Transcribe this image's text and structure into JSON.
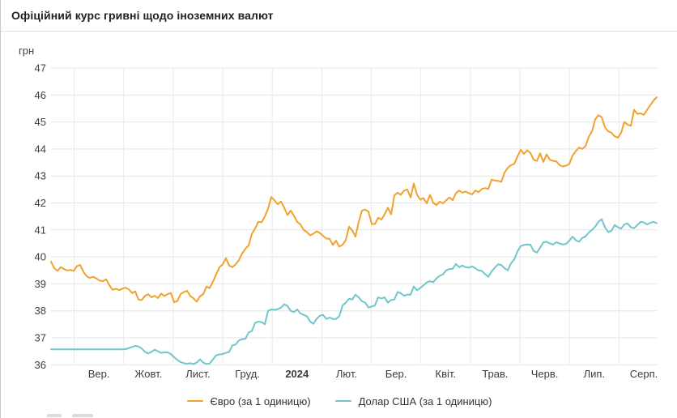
{
  "header": {
    "title": "Офіційний курс гривні щодо іноземних валют"
  },
  "chart_data": {
    "type": "line",
    "title": "Офіційний курс гривні щодо іноземних валют",
    "ylabel": "грн",
    "ylim": [
      36,
      47
    ],
    "yticks": [
      47,
      46,
      45,
      44,
      43,
      42,
      41,
      40,
      39,
      38,
      37,
      36
    ],
    "grid": true,
    "legend_position": "bottom",
    "x_categories": [
      {
        "label": "Вер.",
        "bold": false
      },
      {
        "label": "Жовт.",
        "bold": false
      },
      {
        "label": "Лист.",
        "bold": false
      },
      {
        "label": "Груд.",
        "bold": false
      },
      {
        "label": "2024",
        "bold": true
      },
      {
        "label": "Лют.",
        "bold": false
      },
      {
        "label": "Бер.",
        "bold": false
      },
      {
        "label": "Квіт.",
        "bold": false
      },
      {
        "label": "Трав.",
        "bold": false
      },
      {
        "label": "Черв.",
        "bold": false
      },
      {
        "label": "Лип.",
        "bold": false
      },
      {
        "label": "Серп.",
        "bold": false
      }
    ],
    "series": [
      {
        "name": "Євро (за 1 одиницю)",
        "color": "#F2A12C",
        "values": [
          39.82,
          39.58,
          39.48,
          39.62,
          39.55,
          39.5,
          39.52,
          39.48,
          39.66,
          39.7,
          39.45,
          39.28,
          39.22,
          39.26,
          39.2,
          39.12,
          39.1,
          39.17,
          38.95,
          38.78,
          38.82,
          38.77,
          38.82,
          38.86,
          38.8,
          38.66,
          38.72,
          38.42,
          38.4,
          38.55,
          38.62,
          38.5,
          38.56,
          38.47,
          38.64,
          38.55,
          38.62,
          38.66,
          38.32,
          38.36,
          38.62,
          38.7,
          38.74,
          38.55,
          38.46,
          38.34,
          38.54,
          38.62,
          38.9,
          38.84,
          39.08,
          39.35,
          39.62,
          39.72,
          39.95,
          39.68,
          39.62,
          39.72,
          39.88,
          40.12,
          40.3,
          40.42,
          40.85,
          41.05,
          41.3,
          41.28,
          41.5,
          41.78,
          42.22,
          42.1,
          41.95,
          42.05,
          41.82,
          41.55,
          41.72,
          41.52,
          41.3,
          41.2,
          41.0,
          40.92,
          40.8,
          40.86,
          40.95,
          40.88,
          40.78,
          40.68,
          40.67,
          40.44,
          40.6,
          40.38,
          40.45,
          40.62,
          41.12,
          40.98,
          40.75,
          41.3,
          41.72,
          41.75,
          41.68,
          41.22,
          41.22,
          41.45,
          41.38,
          41.58,
          41.82,
          41.58,
          42.28,
          42.38,
          42.3,
          42.46,
          42.5,
          42.2,
          42.72,
          42.3,
          42.12,
          42.18,
          41.98,
          42.3,
          42.0,
          41.92,
          42.05,
          41.98,
          42.1,
          42.2,
          42.1,
          42.36,
          42.46,
          42.38,
          42.42,
          42.36,
          42.32,
          42.46,
          42.4,
          42.52,
          42.55,
          42.52,
          42.86,
          42.83,
          42.82,
          42.78,
          43.12,
          43.3,
          43.4,
          43.45,
          43.72,
          43.97,
          43.82,
          43.95,
          43.85,
          43.6,
          43.56,
          43.84,
          43.52,
          43.8,
          43.6,
          43.56,
          43.54,
          43.4,
          43.35,
          43.38,
          43.44,
          43.75,
          43.92,
          44.05,
          44.0,
          44.1,
          44.45,
          44.65,
          45.1,
          45.25,
          45.18,
          44.8,
          44.66,
          44.6,
          44.47,
          44.42,
          44.6,
          45.0,
          44.9,
          44.86,
          45.45,
          45.3,
          45.32,
          45.26,
          45.45,
          45.62,
          45.8,
          45.92
        ]
      },
      {
        "name": "Долар США (за 1 одиницю)",
        "color": "#6FC7CC",
        "values": [
          36.57,
          36.57,
          36.57,
          36.57,
          36.57,
          36.57,
          36.57,
          36.57,
          36.57,
          36.57,
          36.57,
          36.57,
          36.57,
          36.57,
          36.57,
          36.57,
          36.57,
          36.57,
          36.57,
          36.57,
          36.57,
          36.57,
          36.57,
          36.58,
          36.62,
          36.66,
          36.7,
          36.68,
          36.6,
          36.48,
          36.42,
          36.48,
          36.56,
          36.5,
          36.44,
          36.46,
          36.46,
          36.4,
          36.28,
          36.18,
          36.1,
          36.06,
          36.04,
          36.06,
          36.03,
          36.08,
          36.2,
          36.08,
          36.03,
          36.05,
          36.2,
          36.35,
          36.38,
          36.4,
          36.44,
          36.48,
          36.72,
          36.75,
          36.9,
          36.95,
          36.96,
          37.2,
          37.25,
          37.55,
          37.6,
          37.58,
          37.5,
          38.0,
          38.05,
          38.04,
          38.06,
          38.12,
          38.24,
          38.18,
          38.0,
          37.95,
          38.05,
          37.9,
          37.85,
          37.8,
          37.6,
          37.52,
          37.7,
          37.82,
          37.85,
          37.7,
          37.75,
          37.7,
          37.7,
          37.8,
          38.2,
          38.3,
          38.45,
          38.42,
          38.6,
          38.5,
          38.35,
          38.3,
          38.12,
          38.16,
          38.2,
          38.5,
          38.46,
          38.5,
          38.3,
          38.4,
          38.42,
          38.7,
          38.65,
          38.56,
          38.6,
          38.6,
          38.9,
          38.76,
          38.85,
          38.95,
          39.05,
          39.1,
          39.06,
          39.2,
          39.3,
          39.35,
          39.5,
          39.55,
          39.56,
          39.74,
          39.62,
          39.68,
          39.62,
          39.6,
          39.65,
          39.58,
          39.5,
          39.48,
          39.36,
          39.26,
          39.46,
          39.6,
          39.72,
          39.7,
          39.58,
          39.5,
          39.76,
          39.9,
          40.2,
          40.4,
          40.44,
          40.46,
          40.45,
          40.22,
          40.16,
          40.34,
          40.54,
          40.56,
          40.5,
          40.46,
          40.54,
          40.5,
          40.46,
          40.48,
          40.6,
          40.75,
          40.62,
          40.56,
          40.7,
          40.76,
          40.9,
          41.0,
          41.12,
          41.3,
          41.4,
          41.1,
          40.92,
          40.96,
          41.18,
          41.1,
          41.05,
          41.2,
          41.24,
          41.1,
          41.06,
          41.18,
          41.3,
          41.28,
          41.2,
          41.26,
          41.3,
          41.25
        ]
      }
    ],
    "style": {
      "grid_color_h": "#e4e4e4",
      "grid_color_v": "#eaeaea",
      "tick_color": "#3d3d3d"
    }
  }
}
